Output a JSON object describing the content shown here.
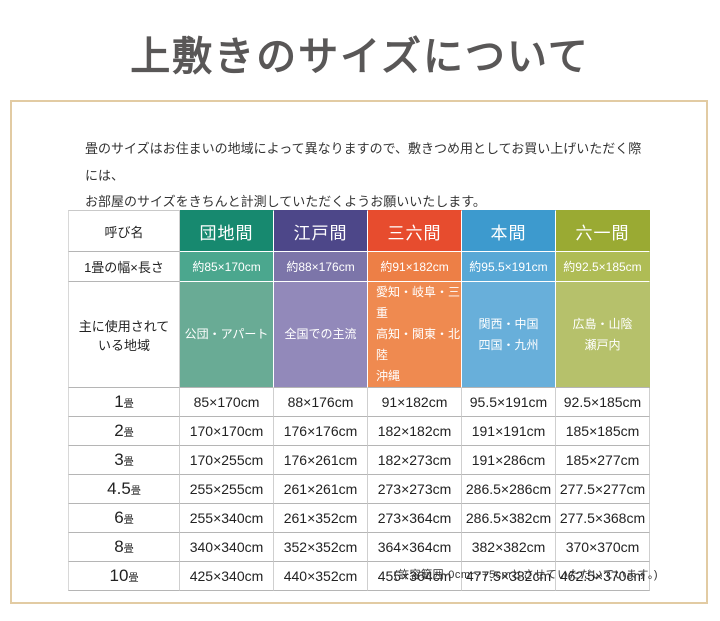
{
  "page": {
    "title": "上敷きのサイズについて"
  },
  "intro": {
    "lines": [
      "畳のサイズはお住まいの地域によって異なりますので、敷きつめ用としてお買い上げいただく際には、",
      "お部屋のサイズをきちんと計測していただくようお願いいたします。"
    ]
  },
  "table": {
    "corner_label": "呼び名",
    "width_row_label": "1畳の幅×長さ",
    "region_row_label_lines": [
      "主に使用されて",
      "いる地域"
    ],
    "size_unit_suffix": "畳",
    "columns": [
      {
        "name": "団地間",
        "tatami_size": "約85×170cm",
        "regions": [
          "公団・アパート"
        ],
        "colors": {
          "header": "#17896F",
          "width_row": "#4BA78E",
          "region_row": "#69AB95"
        }
      },
      {
        "name": "江戸間",
        "tatami_size": "約88×176cm",
        "regions": [
          "全国での主流"
        ],
        "colors": {
          "header": "#4D4789",
          "width_row": "#7C75A9",
          "region_row": "#9289BA"
        }
      },
      {
        "name": "三六間",
        "tatami_size": "約91×182cm",
        "regions": [
          "愛知・岐阜・三重",
          "高知・関東・北陸",
          "沖縄"
        ],
        "colors": {
          "header": "#E74C2E",
          "width_row": "#ED7F46",
          "region_row": "#EF8A50"
        }
      },
      {
        "name": "本間",
        "tatami_size": "約95.5×191cm",
        "regions": [
          "関西・中国",
          "四国・九州"
        ],
        "colors": {
          "header": "#3D9ACE",
          "width_row": "#58A8D6",
          "region_row": "#68AFDA"
        }
      },
      {
        "name": "六一間",
        "tatami_size": "約92.5×185cm",
        "regions": [
          "広島・山陰",
          "瀬戸内"
        ],
        "colors": {
          "header": "#9AAA33",
          "width_row": "#AFBC55",
          "region_row": "#B6C16B"
        }
      }
    ],
    "size_rows": [
      {
        "label": "1",
        "values": [
          "85×170cm",
          "88×176cm",
          "91×182cm",
          "95.5×191cm",
          "92.5×185cm"
        ]
      },
      {
        "label": "2",
        "values": [
          "170×170cm",
          "176×176cm",
          "182×182cm",
          "191×191cm",
          "185×185cm"
        ]
      },
      {
        "label": "3",
        "values": [
          "170×255cm",
          "176×261cm",
          "182×273cm",
          "191×286cm",
          "185×277cm"
        ]
      },
      {
        "label": "4.5",
        "values": [
          "255×255cm",
          "261×261cm",
          "273×273cm",
          "286.5×286cm",
          "277.5×277cm"
        ]
      },
      {
        "label": "6",
        "values": [
          "255×340cm",
          "261×352cm",
          "273×364cm",
          "286.5×382cm",
          "277.5×368cm"
        ]
      },
      {
        "label": "8",
        "values": [
          "340×340cm",
          "352×352cm",
          "364×364cm",
          "382×382cm",
          "370×370cm"
        ]
      },
      {
        "label": "10",
        "values": [
          "425×340cm",
          "440×352cm",
          "455×364cm",
          "477.5×382cm",
          "462.5×370cm"
        ]
      }
    ]
  },
  "footnote": "(許容範囲-0cm～+5cmとさせていただいています。)",
  "colors": {
    "box_border": "#E2CBA3",
    "title_text": "#595757"
  }
}
